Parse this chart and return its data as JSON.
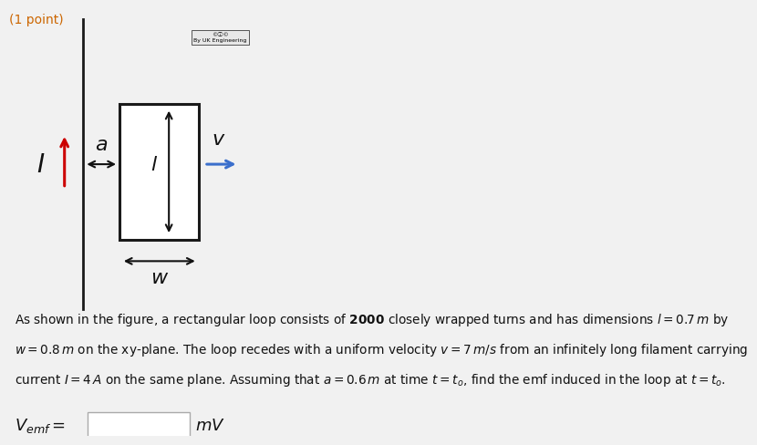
{
  "bg_color": "#f1f1f1",
  "panel_color": "#ffffff",
  "panel_edge_color": "#cccccc",
  "point_text": "(1 point)",
  "point_color": "#cc6600",
  "wire_color": "#1a1a1a",
  "rect_color": "#1a1a1a",
  "arrow_black": "#111111",
  "arrow_red": "#cc0000",
  "arrow_blue": "#3b6fcc",
  "text_color": "#111111",
  "cc_text": "© ⓘ ©\nBy UK Engineering",
  "line1": "As shown in the figure, a rectangular loop consists of \\textbf{2000} closely wrapped turns and has dimensions $l = 0.7\\,m$ by",
  "line2": "$w = 0.8\\,m$ on the xy-plane. The loop recedes with a uniform velocity $v = 7\\,m/s$ from an infinitely long filament carrying",
  "line3": "current $I = 4\\,A$ on the same plane. Assuming that $a = 0.6\\,m$ at time $t = t_o$, find the emf induced in the loop at $t = t_o$."
}
